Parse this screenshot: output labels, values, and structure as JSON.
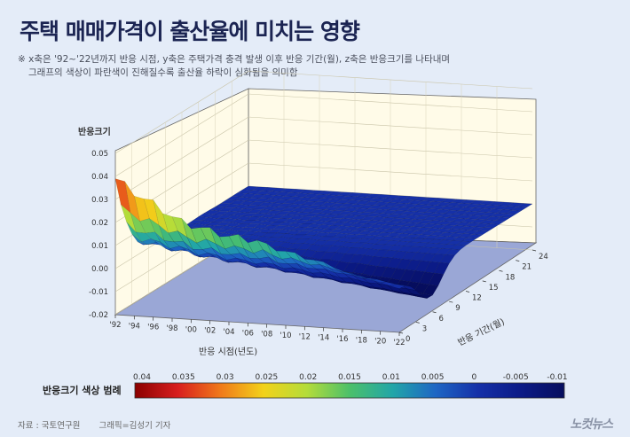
{
  "title": "주택 매매가격이 출산율에 미치는 영향",
  "note_line1": "※ x축은 '92~'22년까지 반응 시점, y축은 주택가격 충격 발생 이후 반응 기간(월), z축은 반응크기를 나타내며",
  "note_line2": "그래프의 색상이 파란색이 진해질수록 출산율 하락이 심화됨을 의미함",
  "legend_title": "반응크기 색상 범례",
  "footer": {
    "source": "자료 : 국토연구원",
    "credit": "그래픽=김성기 기자",
    "logo": "노컷뉴스"
  },
  "chart_data": {
    "type": "surface",
    "zlabel": "반응크기",
    "xlabel": "반응 시점(년도)",
    "ylabel": "반응 기간(월)",
    "z_ticks": [
      "0.05",
      "0.04",
      "0.03",
      "0.02",
      "0.01",
      "0.00",
      "-0.01",
      "-0.02"
    ],
    "zlim": [
      -0.02,
      0.05
    ],
    "x_ticks": [
      "'92",
      "'94",
      "'96",
      "'98",
      "'00",
      "'02",
      "'04",
      "'06",
      "'08",
      "'10",
      "'12",
      "'14",
      "'16",
      "'18",
      "'20",
      "'22"
    ],
    "y_ticks": [
      "0",
      "3",
      "6",
      "9",
      "12",
      "15",
      "18",
      "21",
      "24"
    ],
    "years": [
      1992,
      1993,
      1994,
      1995,
      1996,
      1997,
      1998,
      1999,
      2000,
      2001,
      2002,
      2003,
      2004,
      2005,
      2006,
      2007,
      2008,
      2009,
      2010,
      2011,
      2012,
      2013,
      2014,
      2015,
      2016,
      2017,
      2018,
      2019,
      2020,
      2021,
      2022
    ],
    "initial_response_month0": [
      0.039,
      0.036,
      0.034,
      0.031,
      0.029,
      0.027,
      0.024,
      0.022,
      0.021,
      0.02,
      0.019,
      0.018,
      0.017,
      0.017,
      0.016,
      0.016,
      0.014,
      0.013,
      0.012,
      0.011,
      0.01,
      0.009,
      0.008,
      0.007,
      0.005,
      0.004,
      0.003,
      0.002,
      0.001,
      0.0,
      -0.001
    ],
    "surface_min": -0.015,
    "colorscale": {
      "ticks": [
        "0.04",
        "0.035",
        "0.03",
        "0.025",
        "0.02",
        "0.015",
        "0.01",
        "0.005",
        "0",
        "-0.005",
        "-0.01"
      ],
      "colors": [
        "#8b0000",
        "#d81e1e",
        "#f07a1a",
        "#f2d21a",
        "#b4dc3a",
        "#4cc06a",
        "#22a6a8",
        "#1e66c4",
        "#1530a8",
        "#0b1a86",
        "#060d5e"
      ]
    }
  }
}
